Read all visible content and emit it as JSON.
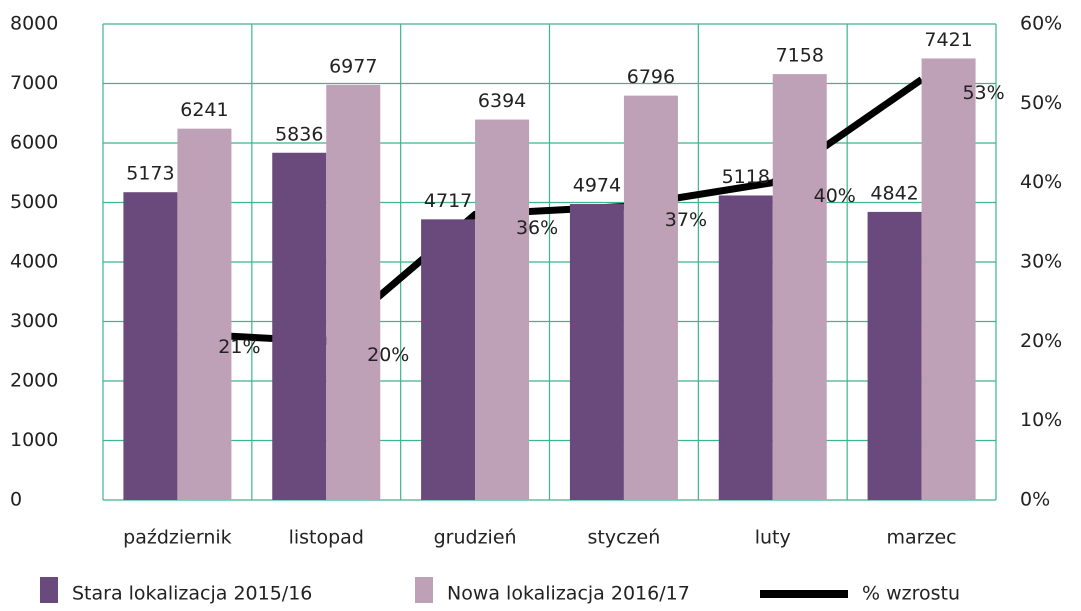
{
  "chart_data": {
    "type": "bar",
    "categories": [
      "październik",
      "listopad",
      "grudzień",
      "styczeń",
      "luty",
      "marzec"
    ],
    "series": [
      {
        "name": "Stara lokalizacja 2015/16",
        "color": "#6a4a7c",
        "values": [
          5173,
          5836,
          4717,
          4974,
          5118,
          4842
        ]
      },
      {
        "name": "Nowa lokalizacja 2016/17",
        "color": "#bea0b7",
        "values": [
          6241,
          6977,
          6394,
          6796,
          7158,
          7421
        ]
      },
      {
        "name": "% wzrostu",
        "type": "line",
        "axis": "y2",
        "color": "#000000",
        "values": [
          21,
          20,
          36,
          37,
          40,
          53
        ],
        "value_labels": [
          "21%",
          "20%",
          "36%",
          "37%",
          "40%",
          "53%"
        ]
      }
    ],
    "ylim": [
      0,
      8000
    ],
    "yticks": [
      0,
      1000,
      2000,
      3000,
      4000,
      5000,
      6000,
      7000,
      8000
    ],
    "y2lim": [
      0,
      60
    ],
    "y2ticks": [
      {
        "value": 0,
        "label": "0%"
      },
      {
        "value": 10,
        "label": "10%"
      },
      {
        "value": 20,
        "label": "20%"
      },
      {
        "value": 30,
        "label": "30%"
      },
      {
        "value": 40,
        "label": "40%"
      },
      {
        "value": 50,
        "label": "50%"
      },
      {
        "value": 60,
        "label": "60%"
      }
    ],
    "grid": true,
    "grid_color": "#3db58e",
    "legend": "bottom"
  }
}
